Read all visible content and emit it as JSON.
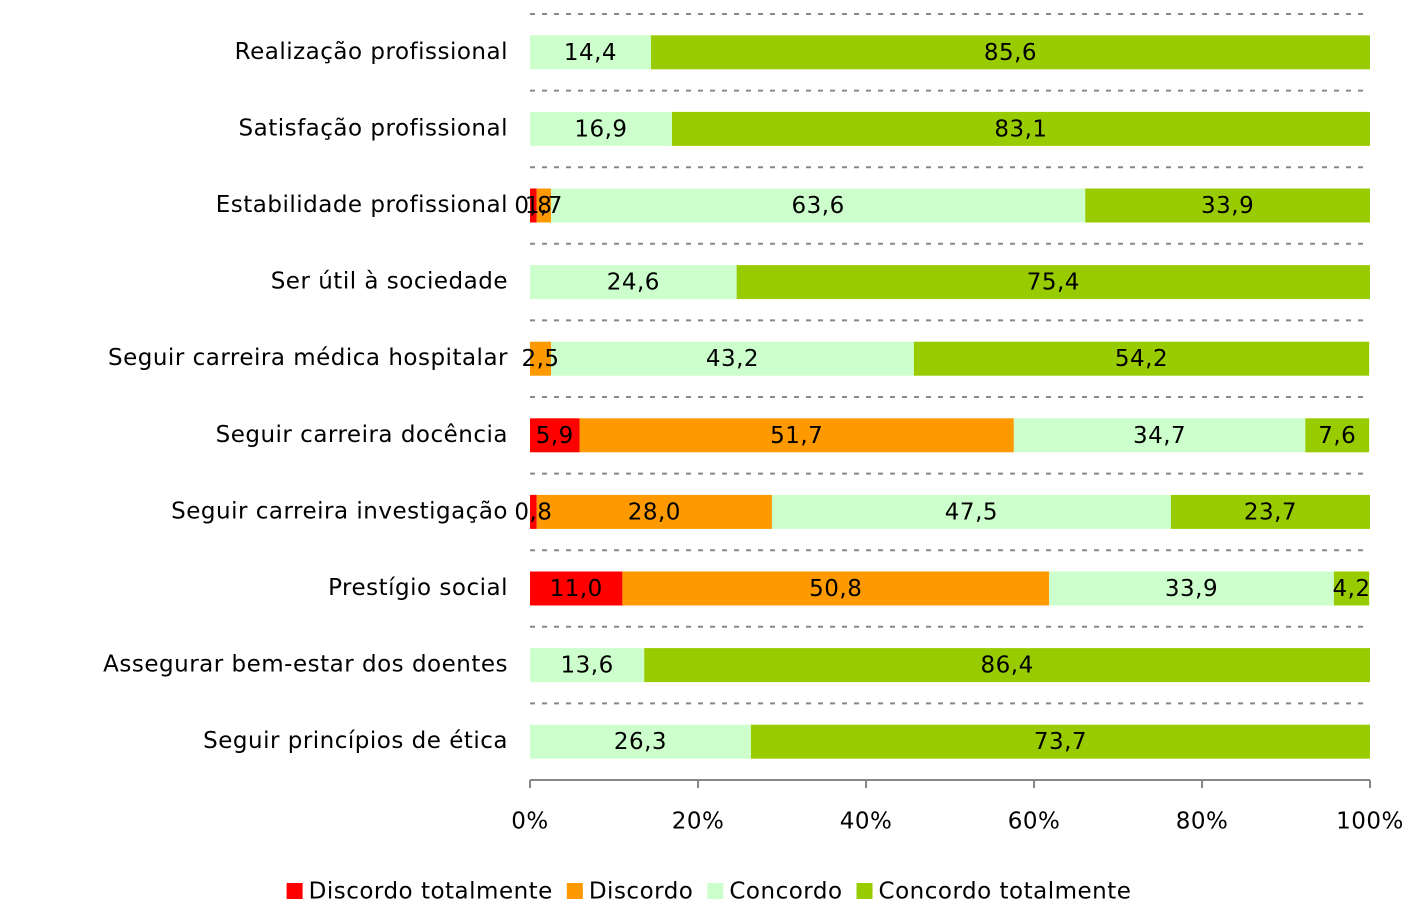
{
  "chart_data": {
    "type": "bar",
    "orientation": "horizontal",
    "stacked": true,
    "categories": [
      "Realização profissional",
      "Satisfação profissional",
      "Estabilidade profissional",
      "Ser útil à sociedade",
      "Seguir carreira médica hospitalar",
      "Seguir carreira docência",
      "Seguir carreira investigação",
      "Prestígio social",
      "Assegurar bem-estar dos doentes",
      "Seguir princípios de ética"
    ],
    "series": [
      {
        "name": "Discordo totalmente",
        "color": "#ff0000",
        "values": [
          null,
          null,
          0.8,
          null,
          null,
          5.9,
          0.8,
          11.0,
          null,
          null
        ],
        "value_labels": [
          null,
          null,
          "0,8",
          null,
          null,
          "5,9",
          "0,8",
          "11,0",
          null,
          null
        ]
      },
      {
        "name": "Discordo",
        "color": "#ff9900",
        "values": [
          null,
          null,
          1.7,
          null,
          2.5,
          51.7,
          28.0,
          50.8,
          null,
          null
        ],
        "value_labels": [
          null,
          null,
          "1,7",
          null,
          "2,5",
          "51,7",
          "28,0",
          "50,8",
          null,
          null
        ]
      },
      {
        "name": "Concordo",
        "color": "#ccffcc",
        "values": [
          14.4,
          16.9,
          63.6,
          24.6,
          43.2,
          34.7,
          47.5,
          33.9,
          13.6,
          26.3
        ],
        "value_labels": [
          "14,4",
          "16,9",
          "63,6",
          "24,6",
          "43,2",
          "34,7",
          "47,5",
          "33,9",
          "13,6",
          "26,3"
        ]
      },
      {
        "name": "Concordo totalmente",
        "color": "#99cc00",
        "values": [
          85.6,
          83.1,
          33.9,
          75.4,
          54.2,
          7.6,
          23.7,
          4.2,
          86.4,
          73.7
        ],
        "value_labels": [
          "85,6",
          "83,1",
          "33,9",
          "75,4",
          "54,2",
          "7,6",
          "23,7",
          "4,2",
          "86,4",
          "73,7"
        ]
      }
    ],
    "xlim": [
      0,
      100
    ],
    "xticks": [
      {
        "value": 0,
        "label": "0%"
      },
      {
        "value": 20,
        "label": "20%"
      },
      {
        "value": 40,
        "label": "40%"
      },
      {
        "value": 60,
        "label": "60%"
      },
      {
        "value": 80,
        "label": "80%"
      },
      {
        "value": 100,
        "label": "100%"
      }
    ],
    "legend": "bottom"
  }
}
